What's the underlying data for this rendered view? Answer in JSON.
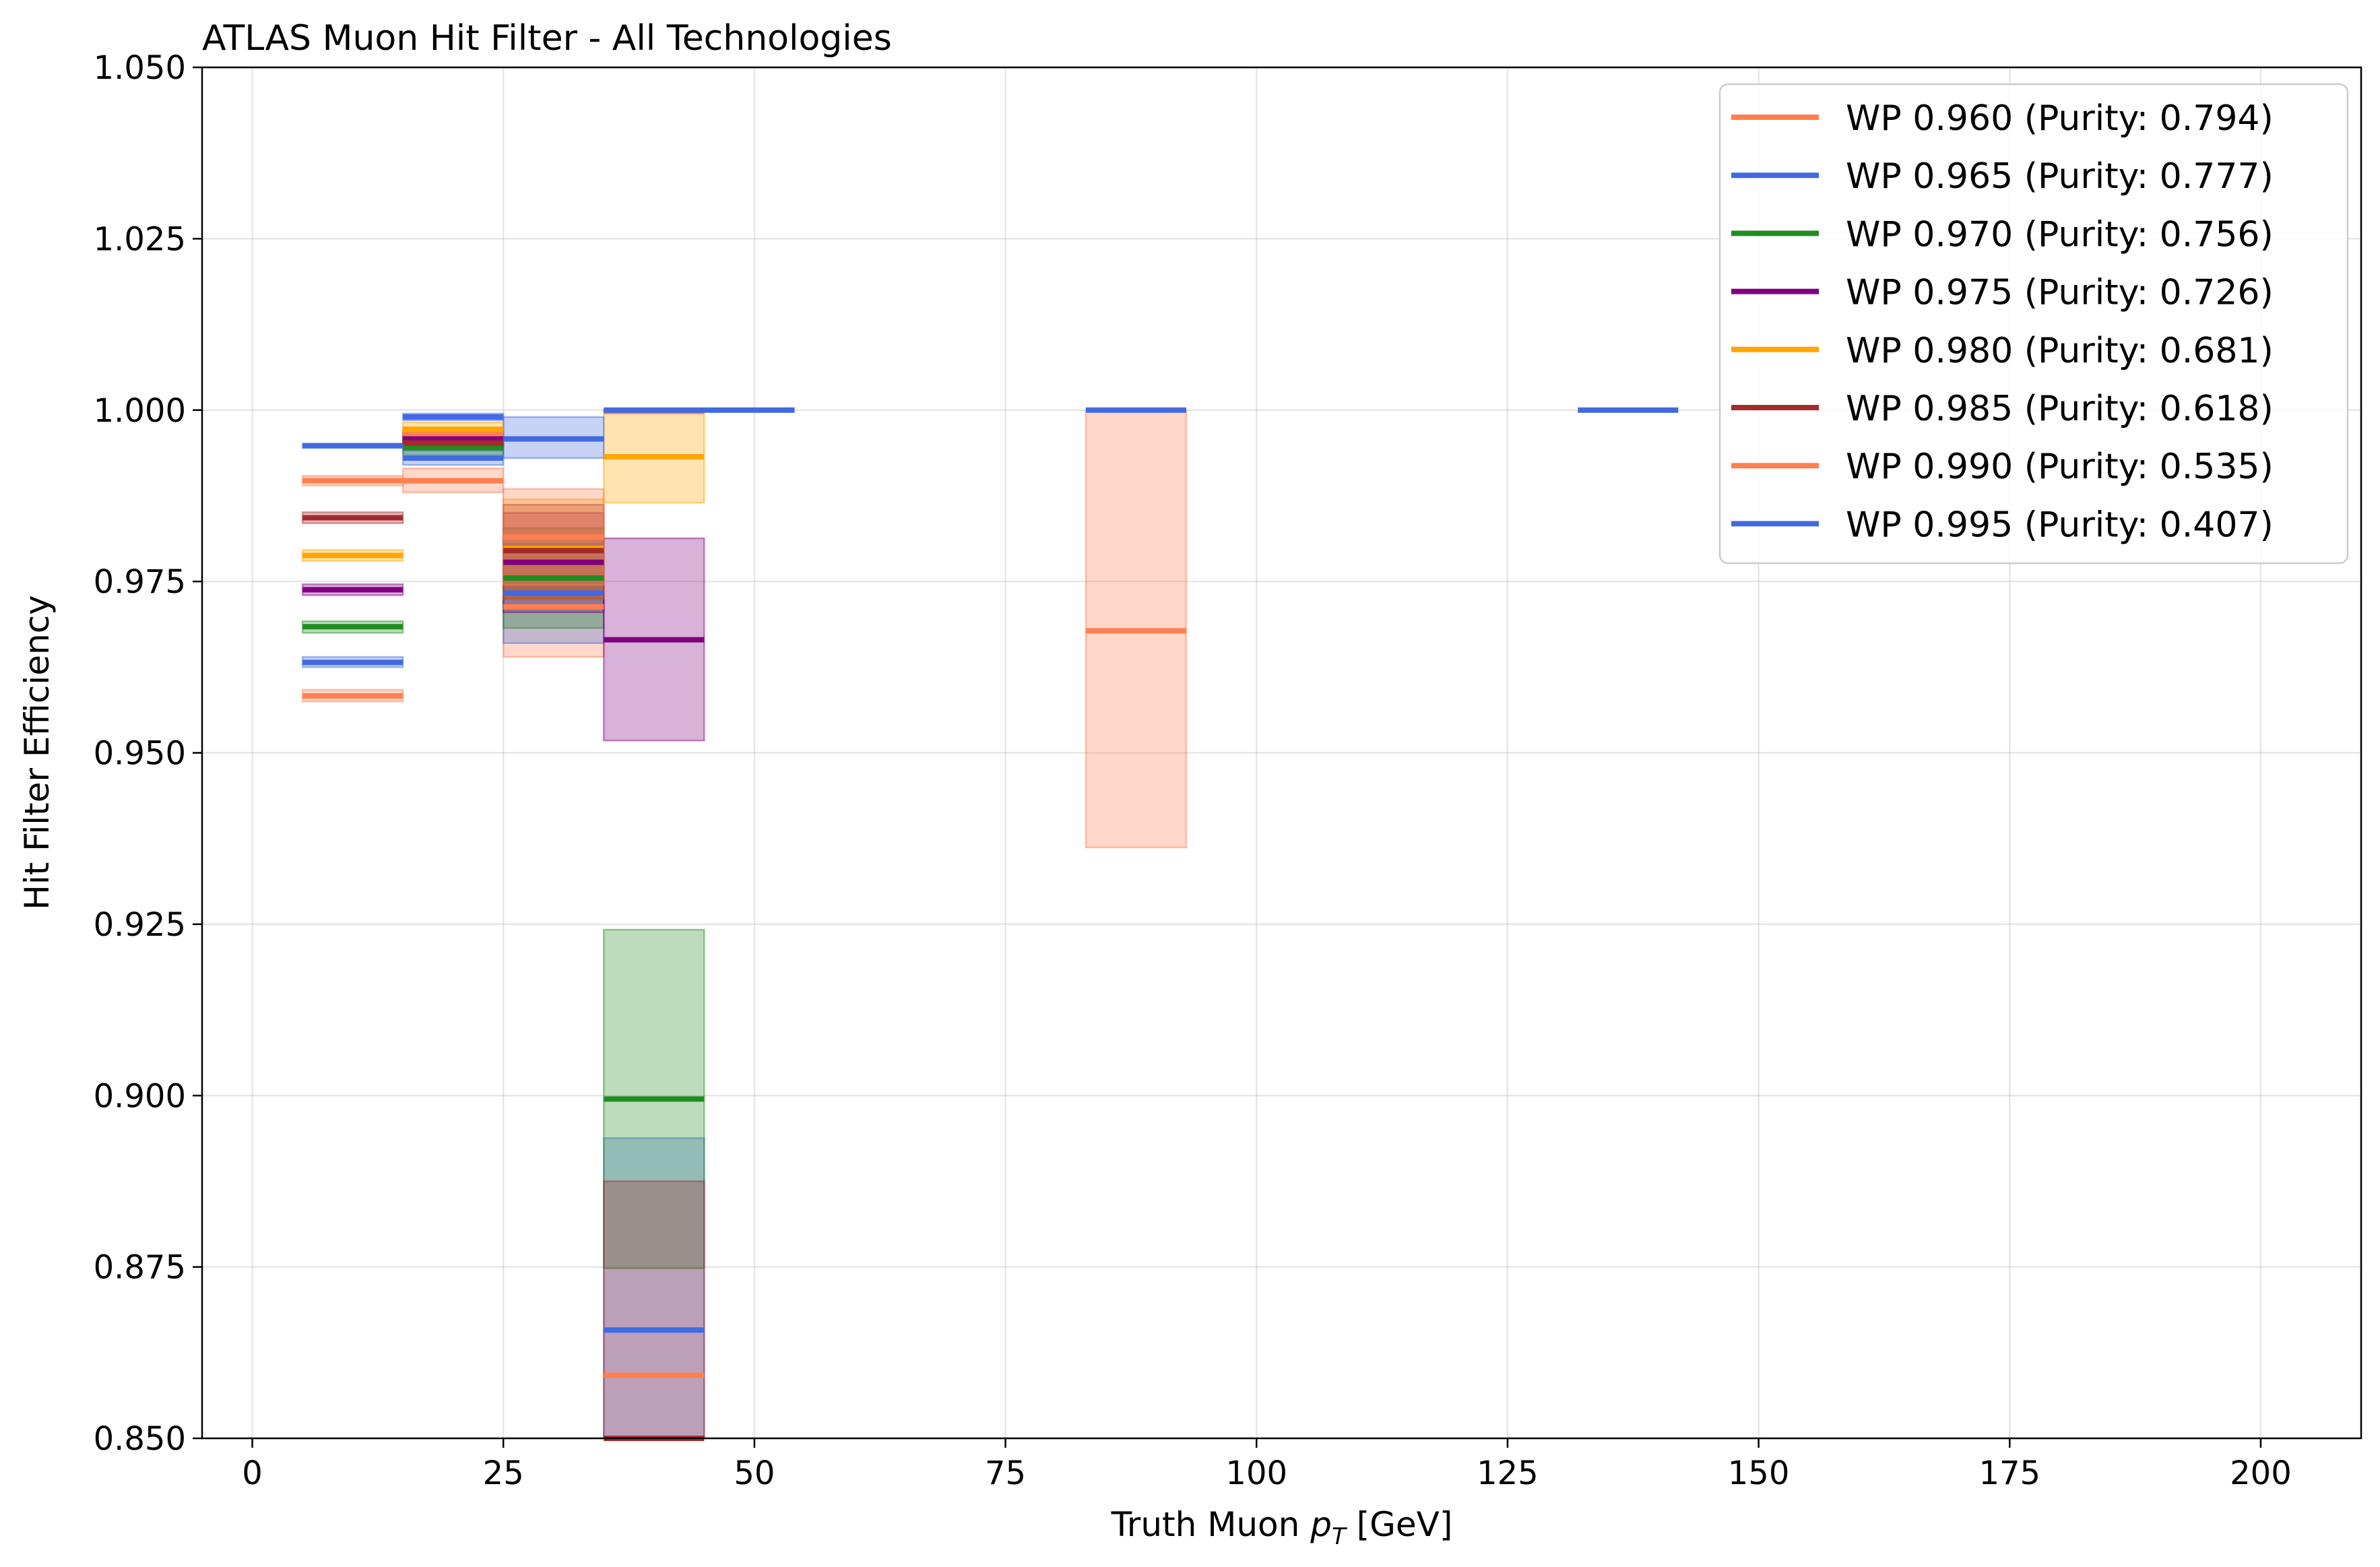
{
  "chart_data": {
    "type": "line",
    "title": "ATLAS Muon Hit Filter - All Technologies",
    "xlabel_main": "Truth Muon ",
    "xlabel_symbol": "p",
    "xlabel_subscript": "T",
    "xlabel_unit": " [GeV]",
    "ylabel": "Hit Filter Efficiency",
    "xlim": [
      -5,
      210
    ],
    "ylim": [
      0.85,
      1.05
    ],
    "xticks": [
      0,
      25,
      50,
      75,
      100,
      125,
      150,
      175,
      200
    ],
    "xtick_labels": [
      "0",
      "25",
      "50",
      "75",
      "100",
      "125",
      "150",
      "175",
      "200"
    ],
    "yticks": [
      0.85,
      0.875,
      0.9,
      0.925,
      0.95,
      0.975,
      1.0,
      1.025,
      1.05
    ],
    "ytick_labels": [
      "0.850",
      "0.875",
      "0.900",
      "0.925",
      "0.950",
      "0.975",
      "1.000",
      "1.025",
      "1.050"
    ],
    "grid": true,
    "legend_position": "top-right",
    "series": [
      {
        "name": "WP 0.960 (Purity: 0.794)",
        "color": "#FF7F50",
        "segments": [
          [
            5,
            15,
            0.9583,
            0.9575,
            0.9592
          ],
          [
            15,
            25,
            0.9965,
            0.9955,
            0.9975
          ],
          [
            25,
            35,
            0.9713,
            0.964,
            0.9785
          ],
          [
            35,
            45,
            0.8592,
            0.85,
            0.85
          ],
          [
            83,
            93,
            0.9678,
            0.9362,
            1.0
          ]
        ]
      },
      {
        "name": "WP 0.965 (Purity: 0.777)",
        "color": "#4169E1",
        "segments": [
          [
            5,
            15,
            0.9632,
            0.9625,
            0.964
          ],
          [
            15,
            25,
            0.999,
            0.9985,
            0.9995
          ],
          [
            25,
            35,
            0.9733,
            0.966,
            0.9805
          ],
          [
            35,
            45,
            0.8658,
            0.85,
            0.8938
          ],
          [
            83,
            93,
            1.0,
            1.0,
            1.0
          ]
        ]
      },
      {
        "name": "WP 0.970 (Purity: 0.756)",
        "color": "#228B22",
        "segments": [
          [
            5,
            15,
            0.9684,
            0.9675,
            0.9692
          ],
          [
            15,
            25,
            0.9945,
            0.9935,
            0.9955
          ],
          [
            25,
            35,
            0.9755,
            0.9682,
            0.9828
          ],
          [
            35,
            45,
            0.8995,
            0.8748,
            0.9242
          ]
        ]
      },
      {
        "name": "WP 0.975 (Purity: 0.726)",
        "color": "#800080",
        "segments": [
          [
            5,
            15,
            0.9738,
            0.973,
            0.9746
          ],
          [
            15,
            25,
            0.9958,
            0.9948,
            0.9968
          ],
          [
            25,
            35,
            0.9778,
            0.9705,
            0.985
          ],
          [
            35,
            45,
            0.9665,
            0.9518,
            0.9813
          ]
        ]
      },
      {
        "name": "WP 0.980 (Purity: 0.681)",
        "color": "#FFA500",
        "segments": [
          [
            5,
            15,
            0.9788,
            0.978,
            0.9796
          ],
          [
            15,
            25,
            0.9972,
            0.9962,
            0.9982
          ],
          [
            25,
            35,
            0.9798,
            0.9725,
            0.987
          ],
          [
            35,
            45,
            0.9932,
            0.9865,
            1.0
          ]
        ]
      },
      {
        "name": "WP 0.985 (Purity: 0.618)",
        "color": "#A52A2A",
        "segments": [
          [
            5,
            15,
            0.9843,
            0.9835,
            0.9851
          ],
          [
            15,
            25,
            0.9952,
            0.9942,
            0.9962
          ],
          [
            25,
            35,
            0.9795,
            0.9725,
            0.9862
          ],
          [
            35,
            45,
            0.85,
            0.85,
            0.8875
          ]
        ]
      },
      {
        "name": "WP 0.990 (Purity: 0.535)",
        "color": "#FF7F50",
        "segments": [
          [
            5,
            15,
            0.9897,
            0.989,
            0.9904
          ],
          [
            15,
            25,
            0.9897,
            0.988,
            0.9915
          ],
          [
            25,
            35,
            0.9815,
            0.9745,
            0.9885
          ],
          [
            35,
            45,
            0.9998,
            0.9998,
            1.0
          ]
        ]
      },
      {
        "name": "WP 0.995 (Purity: 0.407)",
        "color": "#4169E1",
        "segments": [
          [
            5,
            15,
            0.9948,
            0.9945,
            0.9951
          ],
          [
            15,
            25,
            0.993,
            0.992,
            0.994
          ],
          [
            25,
            35,
            0.9958,
            0.993,
            0.999
          ],
          [
            35,
            54,
            1.0,
            1.0,
            1.0
          ],
          [
            132,
            142,
            1.0,
            1.0,
            1.0
          ]
        ]
      }
    ]
  }
}
